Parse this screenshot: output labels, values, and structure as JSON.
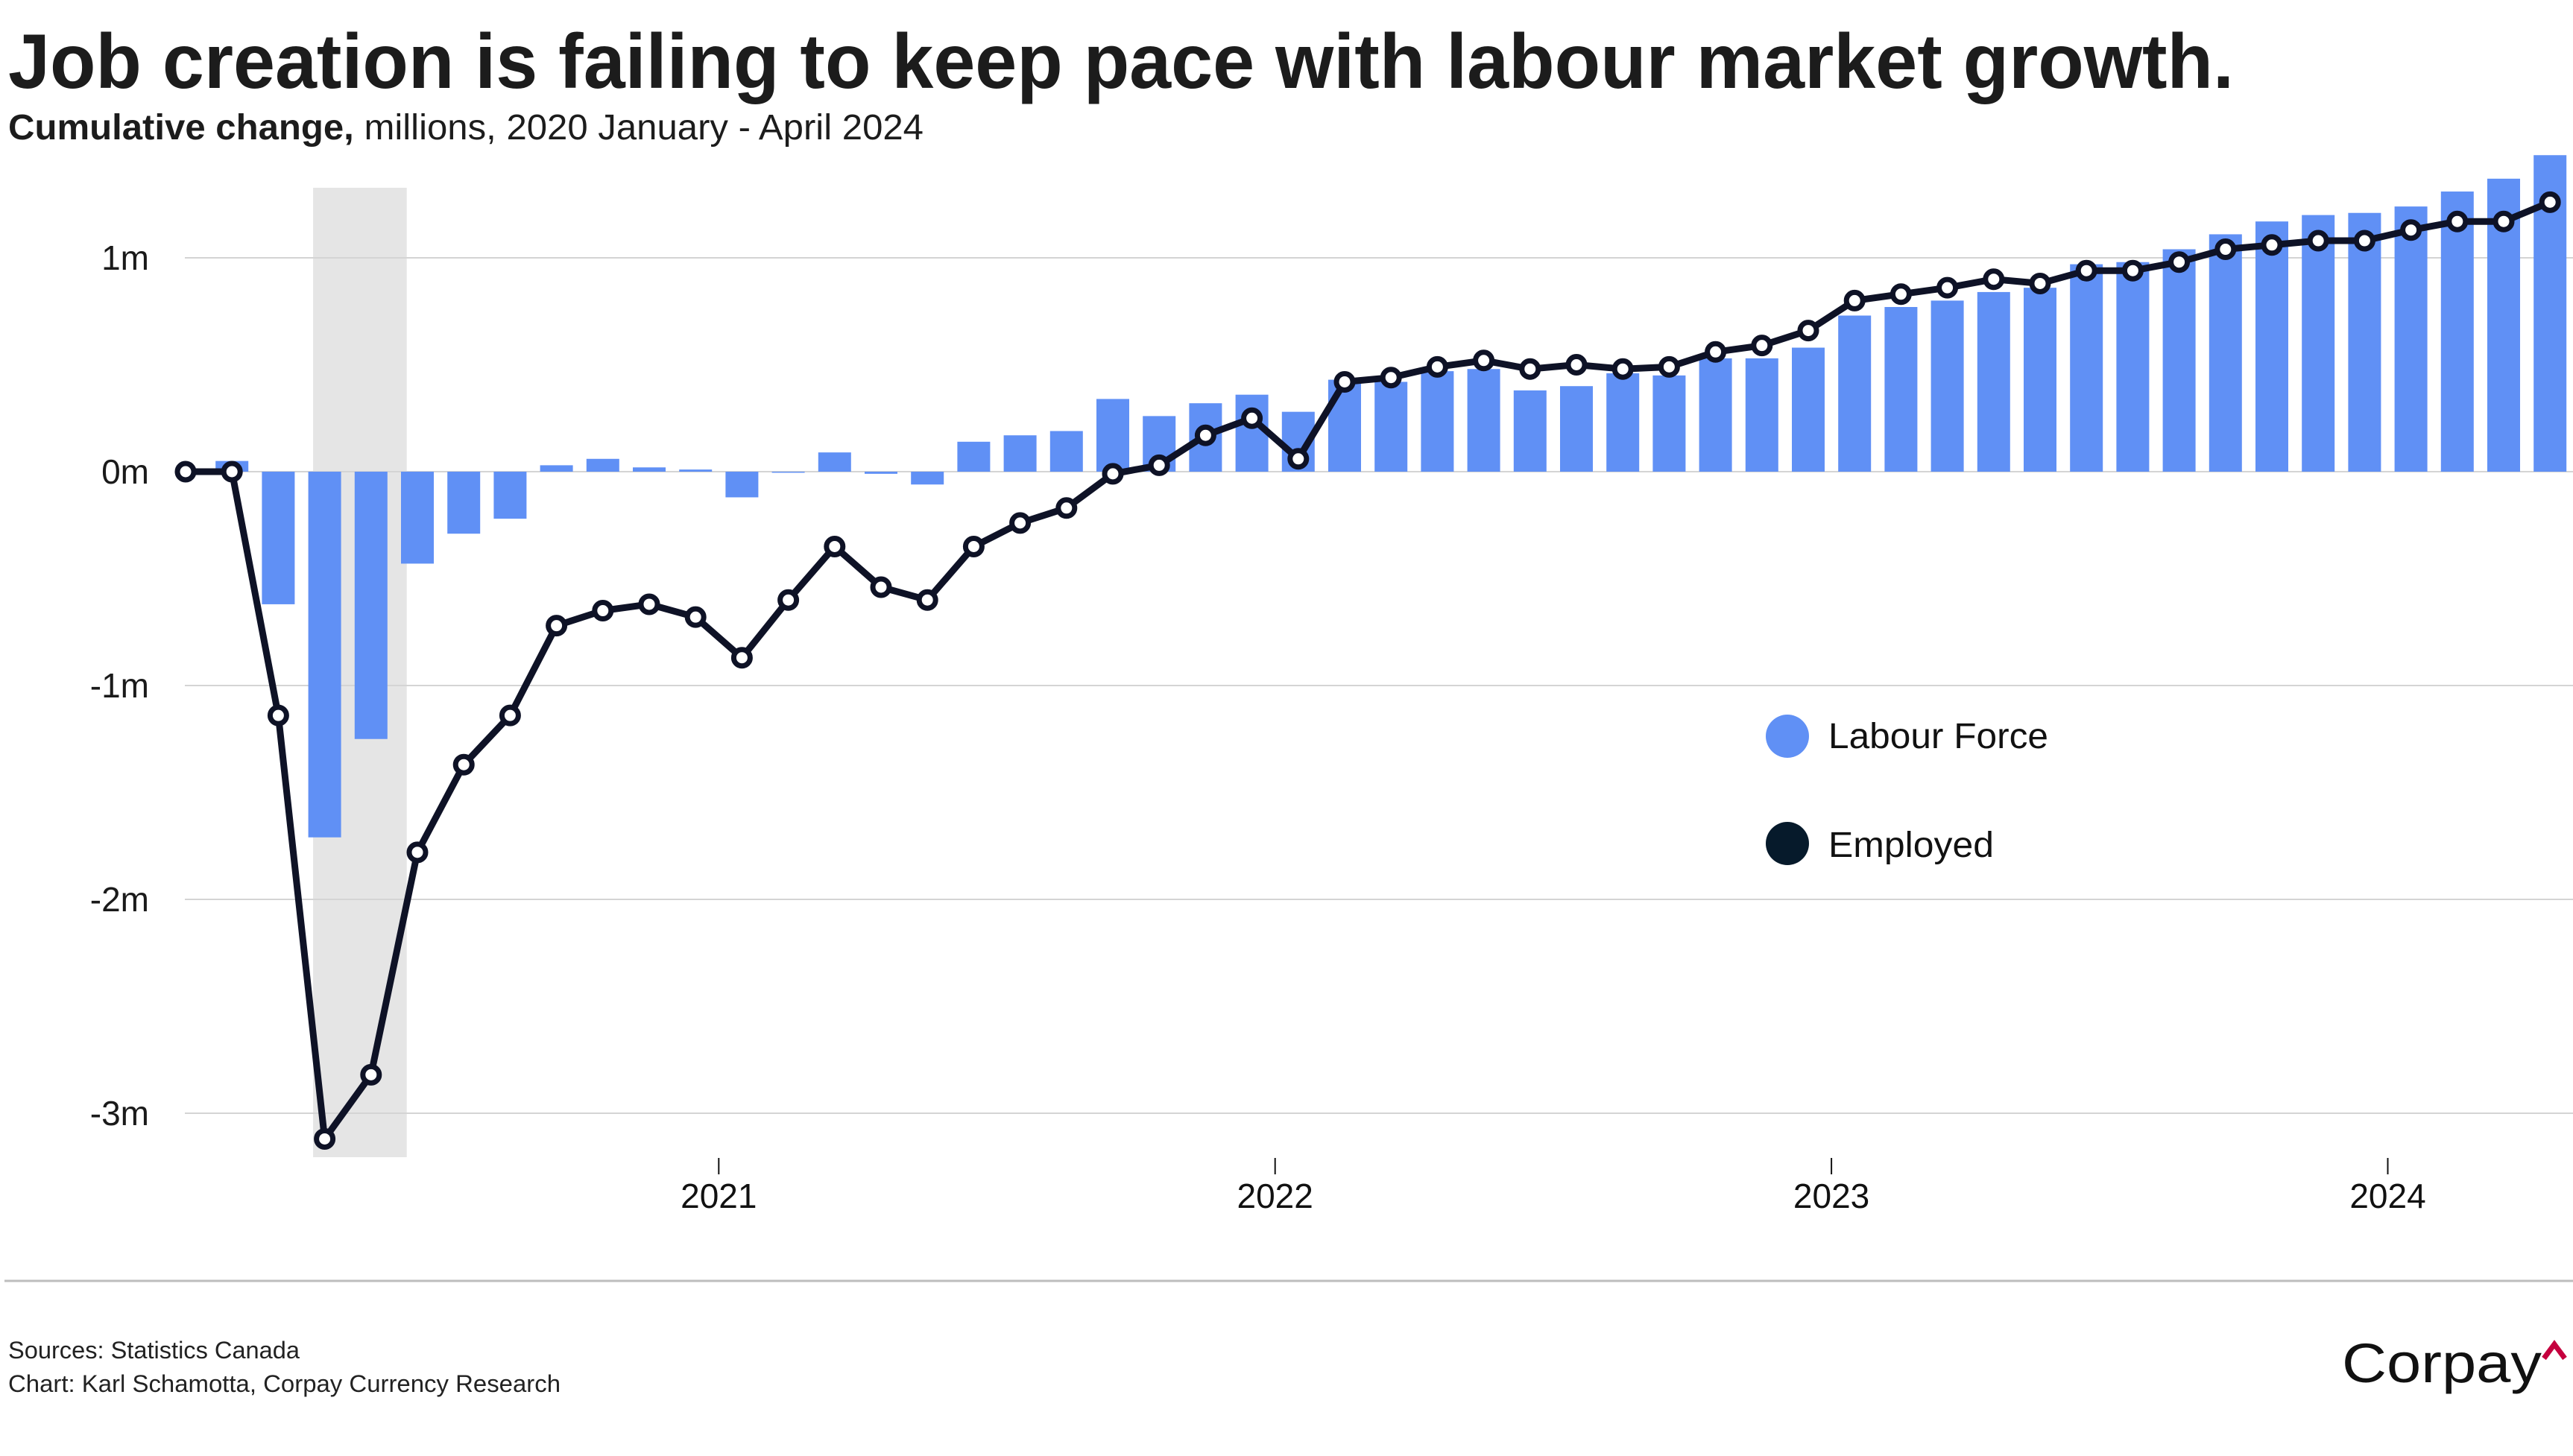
{
  "header": {
    "title": "Job creation is failing to keep pace with labour market growth.",
    "subtitle_bold": "Cumulative change,",
    "subtitle_rest": " millions, 2020 January - April 2024"
  },
  "footer": {
    "sources": "Sources: Statistics Canada",
    "credit": "Chart: Karl Schamotta, Corpay Currency Research"
  },
  "logo": {
    "text": "Corpay",
    "accent_color": "#C5003E"
  },
  "colors": {
    "grid": "#d4d4d4",
    "shading": "#e5e5e5",
    "marker_fill": "#ffffff",
    "legend_employed": "#061A2B"
  },
  "chart_data": {
    "type": "bar+line",
    "title": "Job creation is failing to keep pace with labour market growth.",
    "subtitle": "Cumulative change, millions, 2020 January - April 2024",
    "xlabel": "",
    "ylabel": "",
    "ylim": [
      -3.3,
      1.5
    ],
    "grid": true,
    "legend_position": "center-right",
    "x": [
      "2020-01",
      "2020-02",
      "2020-03",
      "2020-04",
      "2020-05",
      "2020-06",
      "2020-07",
      "2020-08",
      "2020-09",
      "2020-10",
      "2020-11",
      "2020-12",
      "2021-01",
      "2021-02",
      "2021-03",
      "2021-04",
      "2021-05",
      "2021-06",
      "2021-07",
      "2021-08",
      "2021-09",
      "2021-10",
      "2021-11",
      "2021-12",
      "2022-01",
      "2022-02",
      "2022-03",
      "2022-04",
      "2022-05",
      "2022-06",
      "2022-07",
      "2022-08",
      "2022-09",
      "2022-10",
      "2022-11",
      "2022-12",
      "2023-01",
      "2023-02",
      "2023-03",
      "2023-04",
      "2023-05",
      "2023-06",
      "2023-07",
      "2023-08",
      "2023-09",
      "2023-10",
      "2023-11",
      "2023-12",
      "2024-01",
      "2024-02",
      "2024-03",
      "2024-04"
    ],
    "yticks": [
      {
        "value": 1,
        "label": "1m"
      },
      {
        "value": 0,
        "label": "0m"
      },
      {
        "value": -1,
        "label": "-1m"
      },
      {
        "value": -2,
        "label": "-2m"
      },
      {
        "value": -3,
        "label": "-3m"
      }
    ],
    "xticks": [
      {
        "pos": 11.5,
        "label": "2021"
      },
      {
        "pos": 23.5,
        "label": "2022"
      },
      {
        "pos": 35.5,
        "label": "2023"
      },
      {
        "pos": 47.5,
        "label": "2024"
      }
    ],
    "shaded_range": [
      2.75,
      4.77
    ],
    "series": [
      {
        "name": "Labour Force",
        "kind": "bar",
        "color": "#6090F5",
        "values": [
          0,
          0.05,
          -0.62,
          -1.71,
          -1.25,
          -0.43,
          -0.29,
          -0.22,
          0.03,
          0.06,
          0.02,
          0.01,
          -0.12,
          -0.005,
          0.09,
          -0.01,
          -0.06,
          0.14,
          0.17,
          0.19,
          0.34,
          0.26,
          0.32,
          0.36,
          0.28,
          0.43,
          0.42,
          0.47,
          0.48,
          0.38,
          0.4,
          0.46,
          0.45,
          0.53,
          0.53,
          0.58,
          0.73,
          0.77,
          0.8,
          0.84,
          0.86,
          0.97,
          0.98,
          1.04,
          1.11,
          1.17,
          1.2,
          1.21,
          1.24,
          1.31,
          1.37,
          1.48
        ]
      },
      {
        "name": "Employed",
        "kind": "line",
        "color": "#0E1226",
        "values": [
          0,
          0.0,
          -1.14,
          -3.12,
          -2.82,
          -1.78,
          -1.37,
          -1.14,
          -0.72,
          -0.65,
          -0.62,
          -0.68,
          -0.87,
          -0.6,
          -0.35,
          -0.54,
          -0.6,
          -0.35,
          -0.24,
          -0.17,
          -0.01,
          0.03,
          0.17,
          0.25,
          0.06,
          0.42,
          0.44,
          0.49,
          0.52,
          0.48,
          0.5,
          0.48,
          0.49,
          0.56,
          0.59,
          0.66,
          0.8,
          0.83,
          0.86,
          0.9,
          0.88,
          0.94,
          0.94,
          0.98,
          1.04,
          1.06,
          1.08,
          1.08,
          1.13,
          1.17,
          1.17,
          1.26
        ]
      }
    ]
  }
}
